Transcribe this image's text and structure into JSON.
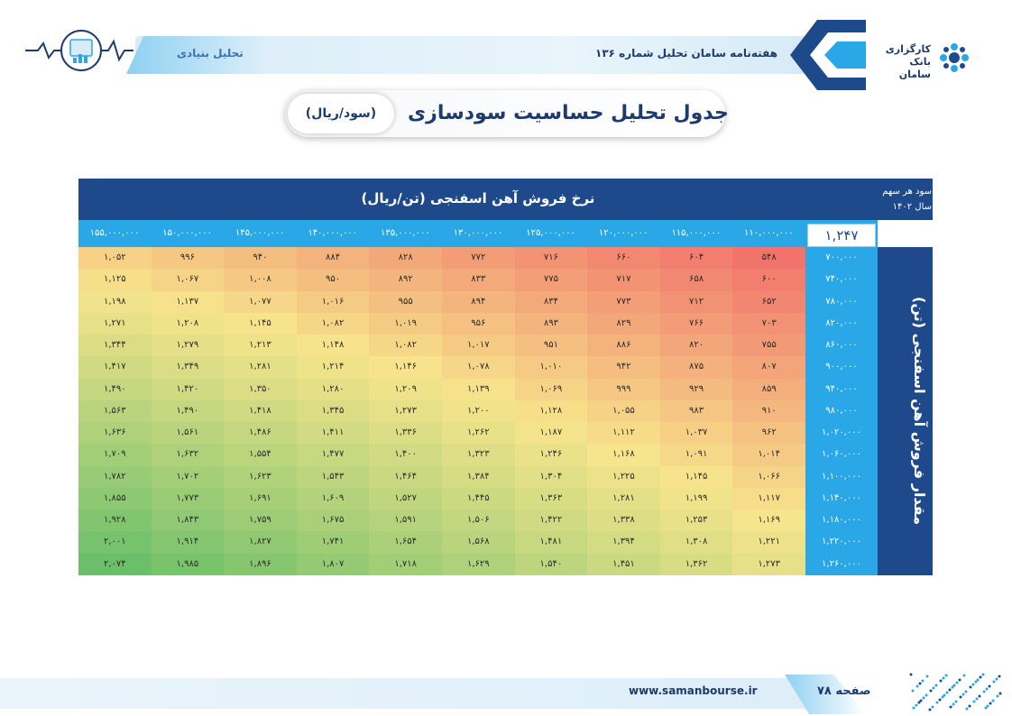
{
  "header": {
    "section_label": "تحلیل بنیادی",
    "publication": "هفته‌نامه سامان تحلیل شماره ۱۳۶",
    "brand_line1": "کارگزاری",
    "brand_line2": "بانک سامان"
  },
  "title": {
    "main": "جدول تحلیل حساسیت سودسازی",
    "unit": "(سود/ریال)"
  },
  "table": {
    "header_title": "نرخ فروش آهن اسفنجی (تن/ریال)",
    "corner_label_line1": "سود هر سهم",
    "corner_label_line2": "سال ۱۴۰۲",
    "base_value": "۱,۲۴۷",
    "row_axis_label": "مقدار فروش آهن اسفنجی (تن)",
    "columns": [
      "۱۱۰,۰۰۰,۰۰۰",
      "۱۱۵,۰۰۰,۰۰۰",
      "۱۲۰,۰۰۰,۰۰۰",
      "۱۲۵,۰۰۰,۰۰۰",
      "۱۳۰,۰۰۰,۰۰۰",
      "۱۳۵,۰۰۰,۰۰۰",
      "۱۴۰,۰۰۰,۰۰۰",
      "۱۴۵,۰۰۰,۰۰۰",
      "۱۵۰,۰۰۰,۰۰۰",
      "۱۵۵,۰۰۰,۰۰۰"
    ],
    "rows": [
      {
        "label": "۷۰۰,۰۰۰",
        "values": [
          "۵۴۸",
          "۶۰۴",
          "۶۶۰",
          "۷۱۶",
          "۷۷۲",
          "۸۲۸",
          "۸۸۴",
          "۹۴۰",
          "۹۹۶",
          "۱,۰۵۲"
        ]
      },
      {
        "label": "۷۴۰,۰۰۰",
        "values": [
          "۶۰۰",
          "۶۵۸",
          "۷۱۷",
          "۷۷۵",
          "۸۳۳",
          "۸۹۲",
          "۹۵۰",
          "۱,۰۰۸",
          "۱,۰۶۷",
          "۱,۱۲۵"
        ]
      },
      {
        "label": "۷۸۰,۰۰۰",
        "values": [
          "۶۵۲",
          "۷۱۲",
          "۷۷۳",
          "۸۳۴",
          "۸۹۴",
          "۹۵۵",
          "۱,۰۱۶",
          "۱,۰۷۷",
          "۱,۱۳۷",
          "۱,۱۹۸"
        ]
      },
      {
        "label": "۸۲۰,۰۰۰",
        "values": [
          "۷۰۳",
          "۷۶۶",
          "۸۲۹",
          "۸۹۳",
          "۹۵۶",
          "۱,۰۱۹",
          "۱,۰۸۲",
          "۱,۱۴۵",
          "۱,۲۰۸",
          "۱,۲۷۱"
        ]
      },
      {
        "label": "۸۶۰,۰۰۰",
        "values": [
          "۷۵۵",
          "۸۲۰",
          "۸۸۶",
          "۹۵۱",
          "۱,۰۱۷",
          "۱,۰۸۲",
          "۱,۱۴۸",
          "۱,۲۱۳",
          "۱,۲۷۹",
          "۱,۳۴۴"
        ]
      },
      {
        "label": "۹۰۰,۰۰۰",
        "values": [
          "۸۰۷",
          "۸۷۵",
          "۹۴۲",
          "۱,۰۱۰",
          "۱,۰۷۸",
          "۱,۱۴۶",
          "۱,۲۱۴",
          "۱,۲۸۱",
          "۱,۳۴۹",
          "۱,۴۱۷"
        ]
      },
      {
        "label": "۹۴۰,۰۰۰",
        "values": [
          "۸۵۹",
          "۹۲۹",
          "۹۹۹",
          "۱,۰۶۹",
          "۱,۱۳۹",
          "۱,۲۰۹",
          "۱,۲۸۰",
          "۱,۳۵۰",
          "۱,۴۲۰",
          "۱,۴۹۰"
        ]
      },
      {
        "label": "۹۸۰,۰۰۰",
        "values": [
          "۹۱۰",
          "۹۸۳",
          "۱,۰۵۵",
          "۱,۱۲۸",
          "۱,۲۰۰",
          "۱,۲۷۳",
          "۱,۳۴۵",
          "۱,۴۱۸",
          "۱,۴۹۰",
          "۱,۵۶۳"
        ]
      },
      {
        "label": "۱,۰۲۰,۰۰۰",
        "values": [
          "۹۶۲",
          "۱,۰۳۷",
          "۱,۱۱۲",
          "۱,۱۸۷",
          "۱,۲۶۲",
          "۱,۳۳۶",
          "۱,۴۱۱",
          "۱,۴۸۶",
          "۱,۵۶۱",
          "۱,۶۳۶"
        ]
      },
      {
        "label": "۱,۰۶۰,۰۰۰",
        "values": [
          "۱,۰۱۴",
          "۱,۰۹۱",
          "۱,۱۶۸",
          "۱,۲۴۶",
          "۱,۳۲۳",
          "۱,۴۰۰",
          "۱,۴۷۷",
          "۱,۵۵۴",
          "۱,۶۳۲",
          "۱,۷۰۹"
        ]
      },
      {
        "label": "۱,۱۰۰,۰۰۰",
        "values": [
          "۱,۰۶۶",
          "۱,۱۴۵",
          "۱,۲۲۵",
          "۱,۳۰۴",
          "۱,۳۸۴",
          "۱,۴۶۴",
          "۱,۵۴۳",
          "۱,۶۲۳",
          "۱,۷۰۲",
          "۱,۷۸۲"
        ]
      },
      {
        "label": "۱,۱۴۰,۰۰۰",
        "values": [
          "۱,۱۱۷",
          "۱,۱۹۹",
          "۱,۲۸۱",
          "۱,۳۶۳",
          "۱,۴۴۵",
          "۱,۵۲۷",
          "۱,۶۰۹",
          "۱,۶۹۱",
          "۱,۷۷۳",
          "۱,۸۵۵"
        ]
      },
      {
        "label": "۱,۱۸۰,۰۰۰",
        "values": [
          "۱,۱۶۹",
          "۱,۲۵۳",
          "۱,۳۳۸",
          "۱,۴۲۲",
          "۱,۵۰۶",
          "۱,۵۹۱",
          "۱,۶۷۵",
          "۱,۷۵۹",
          "۱,۸۴۳",
          "۱,۹۲۸"
        ]
      },
      {
        "label": "۱,۲۲۰,۰۰۰",
        "values": [
          "۱,۲۲۱",
          "۱,۳۰۸",
          "۱,۳۹۴",
          "۱,۴۸۱",
          "۱,۵۶۸",
          "۱,۶۵۴",
          "۱,۷۴۱",
          "۱,۸۲۷",
          "۱,۹۱۴",
          "۲,۰۰۱"
        ]
      },
      {
        "label": "۱,۲۶۰,۰۰۰",
        "values": [
          "۱,۲۷۳",
          "۱,۳۶۲",
          "۱,۴۵۱",
          "۱,۵۴۰",
          "۱,۶۲۹",
          "۱,۷۱۸",
          "۱,۸۰۷",
          "۱,۸۹۶",
          "۱,۹۸۵",
          "۲,۰۷۴"
        ]
      }
    ],
    "heat_colors": {
      "low": "#f0746b",
      "mid": "#f7e58c",
      "high": "#6cbf6a"
    }
  },
  "footer": {
    "url": "www.samanbourse.ir",
    "page_label": "صفحه",
    "page_number": "۷۸"
  }
}
